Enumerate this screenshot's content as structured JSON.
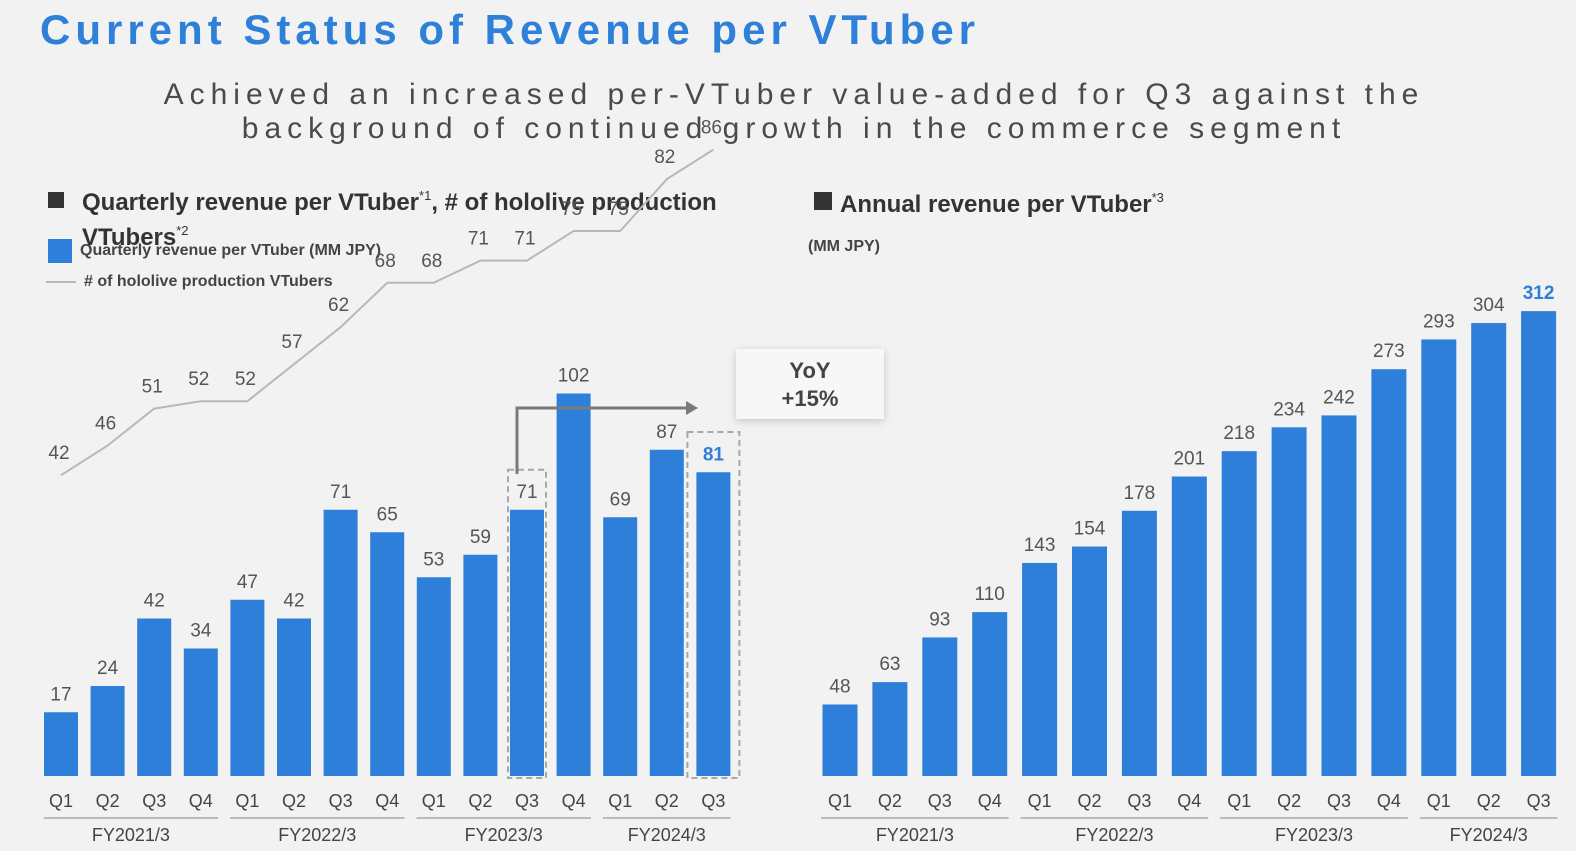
{
  "page": {
    "title": "Current Status of Revenue per VTuber",
    "subtitle_line1": "Achieved an increased per-VTuber value-added for Q3 against the",
    "subtitle_line2": "background of continued growth in the commerce segment"
  },
  "left_section": {
    "heading_line1": "Quarterly revenue per VTuber",
    "heading_sup1": "*1",
    "heading_middle": ", # of hololive production",
    "heading_line2": "VTubers",
    "heading_sup2": "*2"
  },
  "right_section": {
    "heading": "Annual revenue per VTuber",
    "heading_sup": "*3",
    "unit": "(MM JPY)"
  },
  "legend": {
    "bar_label": "Quarterly revenue per VTuber (MM JPY)",
    "line_label": "# of hololive production VTubers"
  },
  "callout": {
    "line1": "YoY",
    "line2": "+15%"
  },
  "colors": {
    "bar": "#2e7fd9",
    "highlight_text": "#2e7fd9",
    "line": "#b8b8b8",
    "title": "#2f80d8"
  },
  "chart_data": [
    {
      "type": "bar",
      "categories": [
        "Q1",
        "Q2",
        "Q3",
        "Q4",
        "Q1",
        "Q2",
        "Q3",
        "Q4",
        "Q1",
        "Q2",
        "Q3",
        "Q4",
        "Q1",
        "Q2",
        "Q3"
      ],
      "groups": [
        {
          "label": "FY2021/3",
          "count": 4
        },
        {
          "label": "FY2022/3",
          "count": 4
        },
        {
          "label": "FY2023/3",
          "count": 4
        },
        {
          "label": "FY2024/3",
          "count": 3
        }
      ],
      "series": [
        {
          "name": "Quarterly revenue per VTuber (MM JPY)",
          "values": [
            17,
            24,
            42,
            34,
            47,
            42,
            71,
            65,
            53,
            59,
            71,
            102,
            69,
            87,
            81
          ]
        },
        {
          "name": "# of hololive production VTubers",
          "type": "line",
          "values": [
            42,
            46,
            51,
            52,
            52,
            57,
            62,
            68,
            68,
            71,
            71,
            75,
            75,
            82,
            86
          ]
        }
      ],
      "highlight_index": [
        10,
        14
      ]
    },
    {
      "type": "bar",
      "categories": [
        "Q1",
        "Q2",
        "Q3",
        "Q4",
        "Q1",
        "Q2",
        "Q3",
        "Q4",
        "Q1",
        "Q2",
        "Q3",
        "Q4",
        "Q1",
        "Q2",
        "Q3"
      ],
      "groups": [
        {
          "label": "FY2021/3",
          "count": 4
        },
        {
          "label": "FY2022/3",
          "count": 4
        },
        {
          "label": "FY2023/3",
          "count": 4
        },
        {
          "label": "FY2024/3",
          "count": 3
        }
      ],
      "series": [
        {
          "name": "Annual revenue per VTuber",
          "values": [
            48,
            63,
            93,
            110,
            143,
            154,
            178,
            201,
            218,
            234,
            242,
            273,
            293,
            304,
            312
          ]
        }
      ],
      "highlight_index": [
        14
      ]
    }
  ]
}
